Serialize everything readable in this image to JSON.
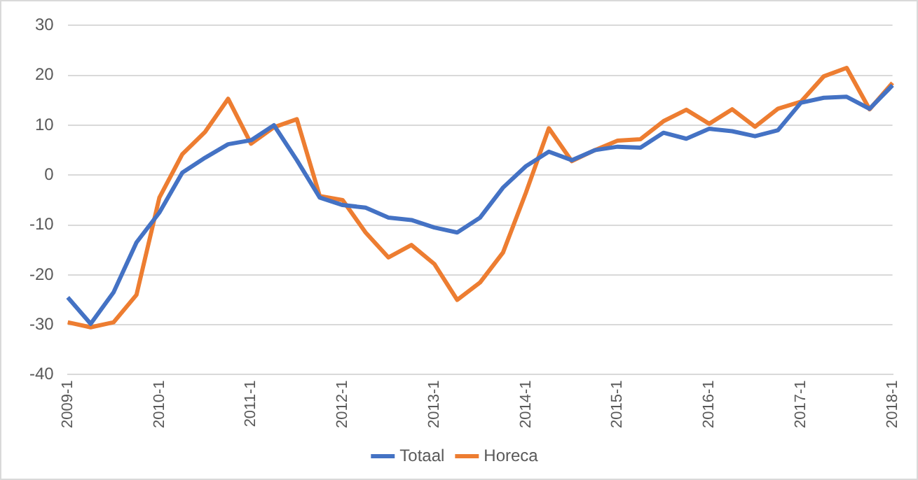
{
  "chart_data": {
    "type": "line",
    "categories": [
      "2009-1",
      null,
      null,
      null,
      "2010-1",
      null,
      null,
      null,
      "2011-1",
      null,
      null,
      null,
      "2012-1",
      null,
      null,
      null,
      "2013-1",
      null,
      null,
      null,
      "2014-1",
      null,
      null,
      null,
      "2015-1",
      null,
      null,
      null,
      "2016-1",
      null,
      null,
      null,
      "2017-1",
      null,
      null,
      null,
      "2018-1"
    ],
    "series": [
      {
        "name": "Totaal",
        "color": "#4472c4",
        "values": [
          -24.5,
          -29.8,
          -23.5,
          -13.5,
          -7.5,
          0.5,
          3.5,
          6.2,
          7,
          10,
          3,
          -4.5,
          -6,
          -6.5,
          -8.5,
          -9,
          -10.5,
          -11.5,
          -8.5,
          -2.5,
          1.8,
          4.7,
          3,
          5,
          5.7,
          5.5,
          8.5,
          7.3,
          9.3,
          8.8,
          7.8,
          9,
          14.5,
          15.5,
          15.7,
          13.3,
          18
        ]
      },
      {
        "name": "Horeca",
        "color": "#ed7d31",
        "values": [
          -29.5,
          -30.5,
          -29.5,
          -24,
          -4.5,
          4.2,
          8.7,
          15.3,
          6.3,
          9.6,
          11.2,
          -4.2,
          -5,
          -11.5,
          -16.5,
          -14,
          -17.8,
          -25,
          -21.5,
          -15.5,
          -3.5,
          9.4,
          2.8,
          5,
          6.9,
          7.2,
          10.8,
          13.1,
          10.3,
          13.2,
          9.7,
          13.3,
          14.7,
          19.8,
          21.5,
          13.2,
          18.5
        ]
      }
    ],
    "ylim": [
      -40,
      30
    ],
    "yticks": [
      -40,
      -30,
      -20,
      -10,
      0,
      10,
      20,
      30
    ],
    "grid": "y",
    "legend": "bottom",
    "marker": "none",
    "line_style": "solid"
  }
}
